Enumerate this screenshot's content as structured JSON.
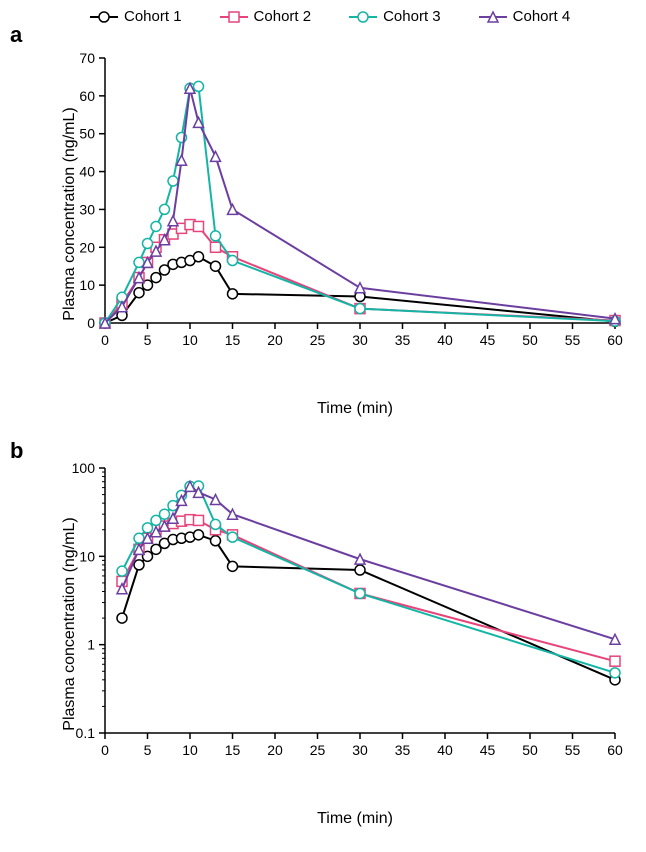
{
  "legend": {
    "items": [
      {
        "label": "Cohort 1",
        "color": "#000000",
        "marker": "circle"
      },
      {
        "label": "Cohort 2",
        "color": "#e6447a",
        "marker": "square"
      },
      {
        "label": "Cohort 3",
        "color": "#15b5a6",
        "marker": "circle"
      },
      {
        "label": "Cohort 4",
        "color": "#6b3fa0",
        "marker": "triangle"
      }
    ]
  },
  "panel_a": {
    "label": "a",
    "type": "line",
    "x_label": "Time (min)",
    "y_label": "Plasma concentration (ng/mL)",
    "x_ticks": [
      0,
      5,
      10,
      15,
      20,
      25,
      30,
      35,
      40,
      45,
      50,
      55,
      60
    ],
    "y_ticks": [
      0,
      10,
      20,
      30,
      40,
      50,
      60,
      70
    ],
    "xlim": [
      0,
      60
    ],
    "ylim": [
      0,
      70
    ],
    "scale": "linear",
    "axis_color": "#000000",
    "background_color": "#ffffff",
    "line_width": 2,
    "marker_size": 5,
    "marker_fill": "#ffffff",
    "tick_fontsize": 14,
    "label_fontsize": 16,
    "series": [
      {
        "name": "Cohort 1",
        "color": "#000000",
        "marker": "circle",
        "x": [
          0,
          2,
          4,
          5,
          6,
          7,
          8,
          9,
          10,
          11,
          13,
          15,
          30,
          60
        ],
        "y": [
          0,
          2,
          8,
          10,
          12,
          14,
          15.5,
          16,
          16.5,
          17.5,
          15,
          7.7,
          7,
          0.4
        ]
      },
      {
        "name": "Cohort 2",
        "color": "#e6447a",
        "marker": "square",
        "x": [
          0,
          2,
          4,
          5,
          6,
          7,
          8,
          9,
          10,
          11,
          13,
          15,
          30,
          60
        ],
        "y": [
          0,
          5.2,
          12,
          16,
          20,
          22,
          23.5,
          25,
          26,
          25.5,
          20,
          17.5,
          3.8,
          0.65
        ]
      },
      {
        "name": "Cohort 3",
        "color": "#15b5a6",
        "marker": "circle",
        "x": [
          0,
          2,
          4,
          5,
          6,
          7,
          8,
          9,
          10,
          11,
          13,
          15,
          30,
          60
        ],
        "y": [
          0,
          6.8,
          16,
          21,
          25.5,
          30,
          37.5,
          49,
          62,
          62.5,
          23,
          16.5,
          3.8,
          0.48
        ]
      },
      {
        "name": "Cohort 4",
        "color": "#6b3fa0",
        "marker": "triangle",
        "x": [
          0,
          2,
          4,
          5,
          6,
          7,
          8,
          9,
          10,
          11,
          13,
          15,
          30,
          60
        ],
        "y": [
          0,
          4.3,
          12,
          16,
          19,
          22,
          27,
          43,
          62,
          53,
          44,
          30,
          9.3,
          1.15
        ]
      }
    ]
  },
  "panel_b": {
    "label": "b",
    "type": "line",
    "x_label": "Time (min)",
    "y_label": "Plasma concentration (ng/mL)",
    "x_ticks": [
      0,
      5,
      10,
      15,
      20,
      25,
      30,
      35,
      40,
      45,
      50,
      55,
      60
    ],
    "y_ticks": [
      0.1,
      1,
      10,
      100
    ],
    "y_tick_labels": [
      "0.1",
      "1",
      "10",
      "100"
    ],
    "xlim": [
      0,
      60
    ],
    "ylim": [
      0.1,
      100
    ],
    "scale": "log",
    "axis_color": "#000000",
    "background_color": "#ffffff",
    "line_width": 2,
    "marker_size": 5,
    "marker_fill": "#ffffff",
    "tick_fontsize": 14,
    "label_fontsize": 16,
    "series": [
      {
        "name": "Cohort 1",
        "color": "#000000",
        "marker": "circle",
        "x": [
          2,
          4,
          5,
          6,
          7,
          8,
          9,
          10,
          11,
          13,
          15,
          30,
          60
        ],
        "y": [
          2,
          8,
          10,
          12,
          14,
          15.5,
          16,
          16.5,
          17.5,
          15,
          7.7,
          7,
          0.4
        ]
      },
      {
        "name": "Cohort 2",
        "color": "#e6447a",
        "marker": "square",
        "x": [
          2,
          4,
          5,
          6,
          7,
          8,
          9,
          10,
          11,
          13,
          15,
          30,
          60
        ],
        "y": [
          5.2,
          12,
          16,
          20,
          22,
          23.5,
          25,
          26,
          25.5,
          20,
          17.5,
          3.8,
          0.65
        ]
      },
      {
        "name": "Cohort 3",
        "color": "#15b5a6",
        "marker": "circle",
        "x": [
          2,
          4,
          5,
          6,
          7,
          8,
          9,
          10,
          11,
          13,
          15,
          30,
          60
        ],
        "y": [
          6.8,
          16,
          21,
          25.5,
          30,
          37.5,
          49,
          62,
          62.5,
          23,
          16.5,
          3.8,
          0.48
        ]
      },
      {
        "name": "Cohort 4",
        "color": "#6b3fa0",
        "marker": "triangle",
        "x": [
          2,
          4,
          5,
          6,
          7,
          8,
          9,
          10,
          11,
          13,
          15,
          30,
          60
        ],
        "y": [
          4.3,
          12,
          16,
          19,
          22,
          27,
          43,
          62,
          53,
          44,
          30,
          9.3,
          1.15
        ]
      }
    ]
  }
}
